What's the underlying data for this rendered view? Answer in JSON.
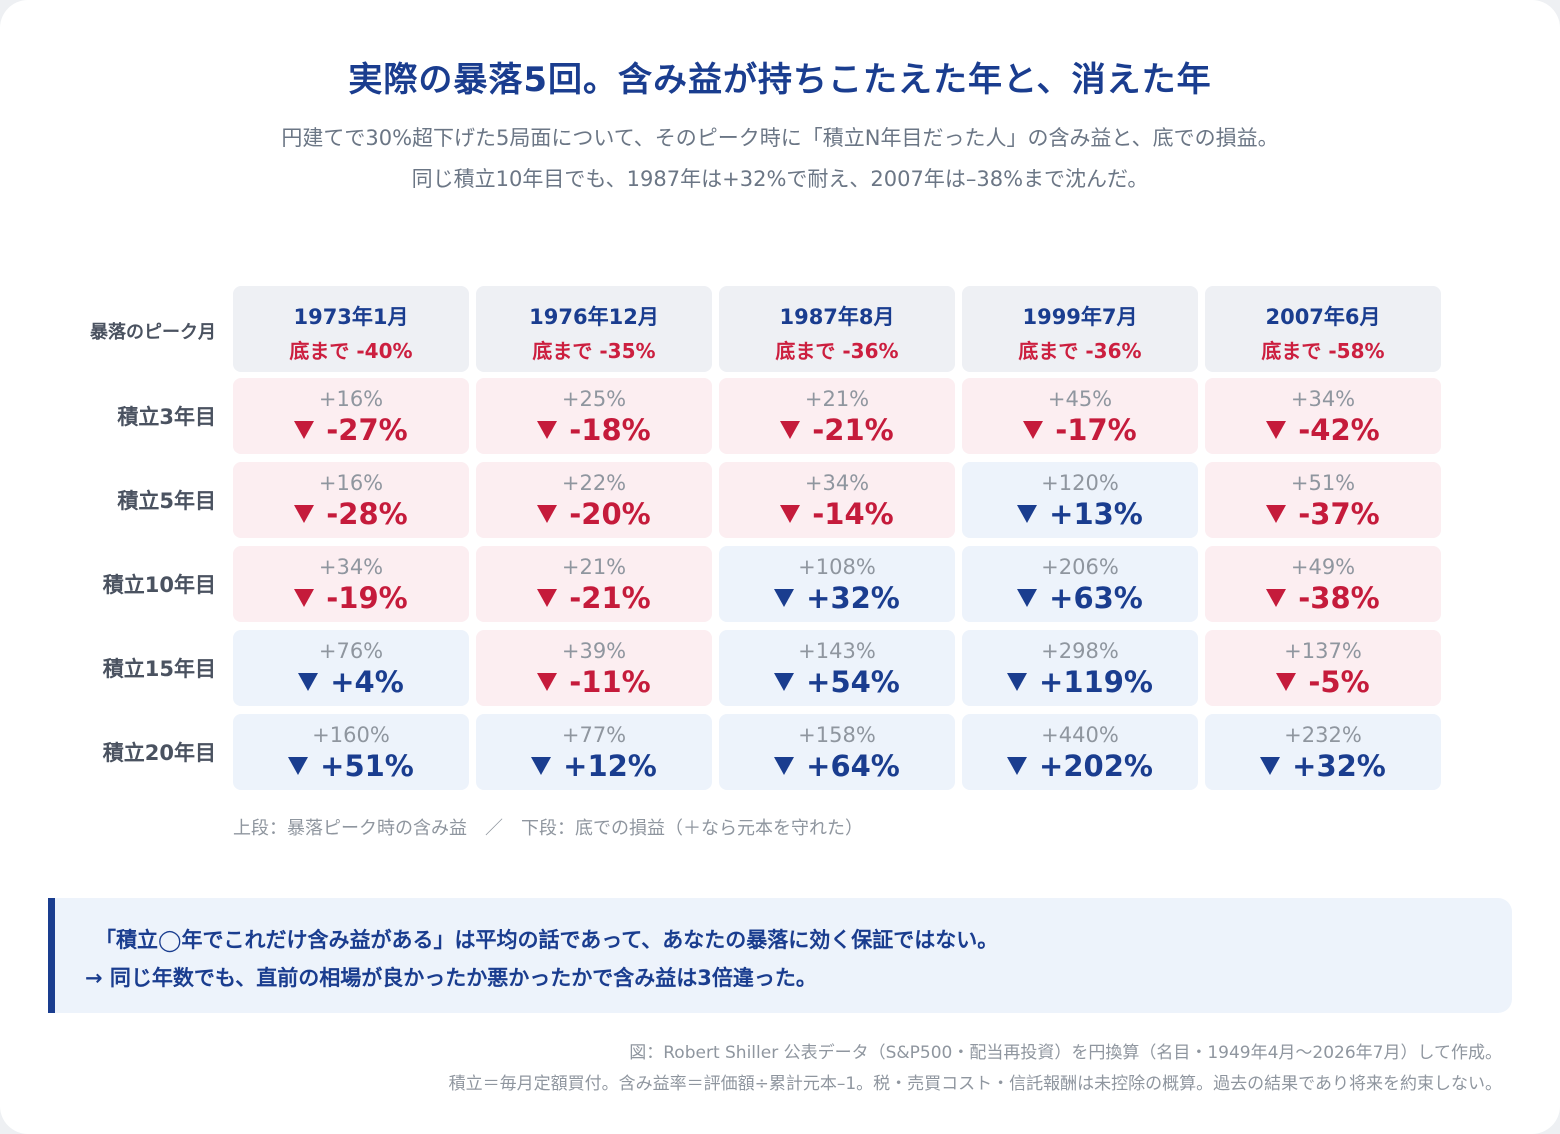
{
  "title": "実際の暴落5回。含み益が持ちこたえた年と、消えた年",
  "subtitle_lines": [
    "円建てで30%超下げた5局面について、そのピーク時に「積立N年目だった人」の含み益と、底での損益。",
    "同じ積立10年目でも、1987年は+32%で耐え、2007年は–38%まで沈んだ。"
  ],
  "chart_data": {
    "type": "table",
    "header_row_label": "暴落のピーク月",
    "columns": [
      {
        "peak": "1973年1月",
        "drawdown": "底まで -40%"
      },
      {
        "peak": "1976年12月",
        "drawdown": "底まで -35%"
      },
      {
        "peak": "1987年8月",
        "drawdown": "底まで -36%"
      },
      {
        "peak": "1999年7月",
        "drawdown": "底まで -36%"
      },
      {
        "peak": "2007年6月",
        "drawdown": "底まで -58%"
      }
    ],
    "rows": [
      {
        "label": "積立3年目",
        "cells": [
          {
            "peak_gain": "+16%",
            "bottom": "-27%",
            "positive": false
          },
          {
            "peak_gain": "+25%",
            "bottom": "-18%",
            "positive": false
          },
          {
            "peak_gain": "+21%",
            "bottom": "-21%",
            "positive": false
          },
          {
            "peak_gain": "+45%",
            "bottom": "-17%",
            "positive": false
          },
          {
            "peak_gain": "+34%",
            "bottom": "-42%",
            "positive": false
          }
        ]
      },
      {
        "label": "積立5年目",
        "cells": [
          {
            "peak_gain": "+16%",
            "bottom": "-28%",
            "positive": false
          },
          {
            "peak_gain": "+22%",
            "bottom": "-20%",
            "positive": false
          },
          {
            "peak_gain": "+34%",
            "bottom": "-14%",
            "positive": false
          },
          {
            "peak_gain": "+120%",
            "bottom": "+13%",
            "positive": true
          },
          {
            "peak_gain": "+51%",
            "bottom": "-37%",
            "positive": false
          }
        ]
      },
      {
        "label": "積立10年目",
        "cells": [
          {
            "peak_gain": "+34%",
            "bottom": "-19%",
            "positive": false
          },
          {
            "peak_gain": "+21%",
            "bottom": "-21%",
            "positive": false
          },
          {
            "peak_gain": "+108%",
            "bottom": "+32%",
            "positive": true
          },
          {
            "peak_gain": "+206%",
            "bottom": "+63%",
            "positive": true
          },
          {
            "peak_gain": "+49%",
            "bottom": "-38%",
            "positive": false
          }
        ]
      },
      {
        "label": "積立15年目",
        "cells": [
          {
            "peak_gain": "+76%",
            "bottom": "+4%",
            "positive": true
          },
          {
            "peak_gain": "+39%",
            "bottom": "-11%",
            "positive": false
          },
          {
            "peak_gain": "+143%",
            "bottom": "+54%",
            "positive": true
          },
          {
            "peak_gain": "+298%",
            "bottom": "+119%",
            "positive": true
          },
          {
            "peak_gain": "+137%",
            "bottom": "-5%",
            "positive": false
          }
        ]
      },
      {
        "label": "積立20年目",
        "cells": [
          {
            "peak_gain": "+160%",
            "bottom": "+51%",
            "positive": true
          },
          {
            "peak_gain": "+77%",
            "bottom": "+12%",
            "positive": true
          },
          {
            "peak_gain": "+158%",
            "bottom": "+64%",
            "positive": true
          },
          {
            "peak_gain": "+440%",
            "bottom": "+202%",
            "positive": true
          },
          {
            "peak_gain": "+232%",
            "bottom": "+32%",
            "positive": true
          }
        ]
      }
    ],
    "colors": {
      "negative_bg": "#fceef1",
      "positive_bg": "#edf3fb",
      "negative_text": "#c51b3b",
      "positive_text": "#1a3d8f"
    }
  },
  "legend": "上段：暴落ピーク時の含み益　／　下段：底での損益（＋なら元本を守れた）",
  "callout": {
    "line1": "「積立◯年でこれだけ含み益がある」は平均の話であって、あなたの暴落に効く保証ではない。",
    "line2": "→ 同じ年数でも、直前の相場が良かったか悪かったかで含み益は3倍違った。"
  },
  "source_lines": [
    "図：Robert Shiller 公表データ（S&P500・配当再投資）を円換算（名目・1949年4月〜2026年7月）して作成。",
    "積立＝毎月定額買付。含み益率＝評価額÷累計元本–1。税・売買コスト・信託報酬は未控除の概算。過去の結果であり将来を約束しない。"
  ]
}
